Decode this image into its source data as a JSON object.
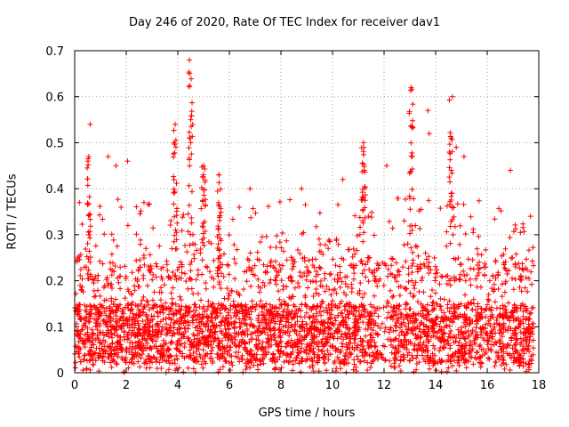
{
  "chart_data": {
    "type": "scatter",
    "title": "Day 246 of 2020, Rate Of TEC Index for receiver dav1",
    "xlabel": "GPS time / hours",
    "ylabel": "ROTI / TECUs",
    "xlim": [
      0,
      18
    ],
    "ylim": [
      0,
      0.7
    ],
    "xticks": [
      0,
      2,
      4,
      6,
      8,
      10,
      12,
      14,
      16,
      18
    ],
    "xtick_labels": [
      "0",
      "2",
      "4",
      "6",
      "8",
      "10",
      "12",
      "14",
      "16",
      "18"
    ],
    "yticks": [
      0,
      0.1,
      0.2,
      0.3,
      0.4,
      0.5,
      0.6,
      0.7
    ],
    "ytick_labels": [
      "0",
      "0.1",
      "0.2",
      "0.3",
      "0.4",
      "0.5",
      "0.6",
      "0.7"
    ],
    "grid": true,
    "marker": "+",
    "color": "#ff0000",
    "notable_points": [
      {
        "x": 0.6,
        "y": 0.54
      },
      {
        "x": 0.55,
        "y": 0.47
      },
      {
        "x": 1.3,
        "y": 0.47
      },
      {
        "x": 2.05,
        "y": 0.46
      },
      {
        "x": 1.6,
        "y": 0.45
      },
      {
        "x": 3.9,
        "y": 0.54
      },
      {
        "x": 3.85,
        "y": 0.5
      },
      {
        "x": 4.45,
        "y": 0.68
      },
      {
        "x": 4.5,
        "y": 0.55
      },
      {
        "x": 5.0,
        "y": 0.45
      },
      {
        "x": 5.6,
        "y": 0.43
      },
      {
        "x": 6.8,
        "y": 0.4
      },
      {
        "x": 8.8,
        "y": 0.4
      },
      {
        "x": 10.4,
        "y": 0.42
      },
      {
        "x": 11.2,
        "y": 0.5
      },
      {
        "x": 12.1,
        "y": 0.45
      },
      {
        "x": 13.05,
        "y": 0.62
      },
      {
        "x": 13.1,
        "y": 0.47
      },
      {
        "x": 13.7,
        "y": 0.57
      },
      {
        "x": 13.75,
        "y": 0.52
      },
      {
        "x": 14.65,
        "y": 0.6
      },
      {
        "x": 14.6,
        "y": 0.51
      },
      {
        "x": 14.8,
        "y": 0.49
      },
      {
        "x": 15.1,
        "y": 0.47
      },
      {
        "x": 16.9,
        "y": 0.44
      },
      {
        "x": 17.1,
        "y": 0.23
      }
    ],
    "bulk_distribution": {
      "x_range": [
        0,
        17.8
      ],
      "typical_range": [
        0,
        0.25
      ],
      "dense_range": [
        0.02,
        0.15
      ],
      "gap_near_x": [
        11.8,
        12.2
      ]
    }
  }
}
